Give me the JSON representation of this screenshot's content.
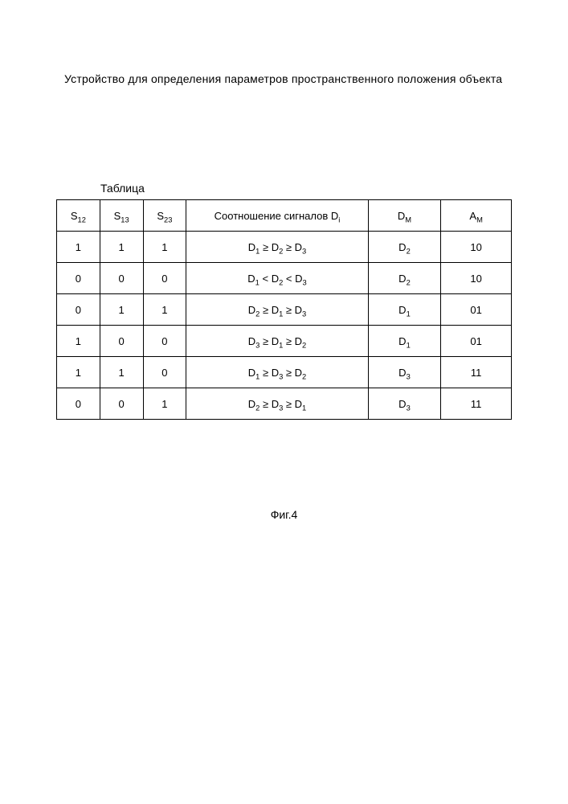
{
  "doc": {
    "title": "Устройство для определения параметров пространственного положения объекта",
    "table_label": "Таблица",
    "figure_label": "Фиг.4"
  },
  "table": {
    "columns": [
      "S12",
      "S13",
      "S23",
      "Соотношение сигналов Di",
      "DM",
      "AM"
    ],
    "headers_html": [
      "S<sub>12</sub>",
      "S<sub>13</sub>",
      "S<sub>23</sub>",
      "Соотношение сигналов D<sub>i</sub>",
      "D<sub>M</sub>",
      "A<sub>M</sub>"
    ],
    "rows": [
      {
        "s12": "1",
        "s13": "1",
        "s23": "1",
        "rel_html": "D<sub>1</sub>  ≥  D<sub>2</sub>  ≥  D<sub>3</sub>",
        "dm_html": "D<sub>2</sub>",
        "am": "10"
      },
      {
        "s12": "0",
        "s13": "0",
        "s23": "0",
        "rel_html": "D<sub>1</sub>  <  D<sub>2</sub>  <  D<sub>3</sub>",
        "dm_html": "D<sub>2</sub>",
        "am": "10"
      },
      {
        "s12": "0",
        "s13": "1",
        "s23": "1",
        "rel_html": "D<sub>2</sub>  ≥  D<sub>1</sub>  ≥  D<sub>3</sub>",
        "dm_html": "D<sub>1</sub>",
        "am": "01"
      },
      {
        "s12": "1",
        "s13": "0",
        "s23": "0",
        "rel_html": "D<sub>3</sub>  ≥  D<sub>1</sub>  ≥  D<sub>2</sub>",
        "dm_html": "D<sub>1</sub>",
        "am": "01"
      },
      {
        "s12": "1",
        "s13": "1",
        "s23": "0",
        "rel_html": "D<sub>1</sub>  ≥  D<sub>3</sub>  ≥  D<sub>2</sub>",
        "dm_html": "D<sub>3</sub>",
        "am": "11"
      },
      {
        "s12": "0",
        "s13": "0",
        "s23": "1",
        "rel_html": "D<sub>2</sub>  ≥  D<sub>3</sub>  ≥  D<sub>1</sub>",
        "dm_html": "D<sub>3</sub>",
        "am": "11"
      }
    ],
    "border_color": "#000000",
    "background_color": "#ffffff",
    "text_color": "#000000",
    "header_fontsize": 13,
    "cell_fontsize": 13
  }
}
